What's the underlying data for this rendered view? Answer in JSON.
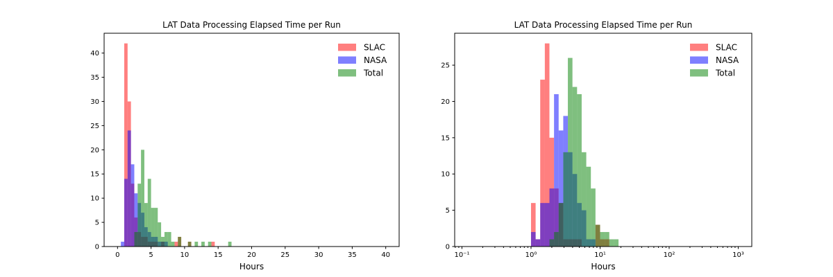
{
  "colors": {
    "slac": "#ff0000",
    "nasa": "#0000ff",
    "total": "#008000",
    "fill_opacity": 0.5,
    "axis": "#000000",
    "background": "#ffffff"
  },
  "chart_data": [
    {
      "type": "histogram",
      "title": "LAT Data Processing Elapsed Time per Run",
      "xlabel": "Hours",
      "xscale": "linear",
      "xlim": [
        -2,
        42
      ],
      "ylim": [
        0,
        44.1
      ],
      "xticks": [
        0,
        5,
        10,
        15,
        20,
        25,
        30,
        35,
        40
      ],
      "yticks": [
        0,
        5,
        10,
        15,
        20,
        25,
        30,
        35,
        40
      ],
      "grid": false,
      "legend_position": "upper right",
      "legend_labels": [
        "SLAC",
        "NASA",
        "Total"
      ],
      "bin_edges": [
        0.5,
        1.0,
        1.5,
        2.0,
        2.5,
        3.0,
        3.5,
        4.0,
        4.5,
        5.0,
        5.5,
        6.0,
        6.5,
        7.0,
        7.5,
        8.0,
        8.5,
        9.0,
        9.5,
        10.0,
        10.5,
        11.0,
        11.5,
        12.0,
        12.5,
        13.0,
        13.5,
        14.0,
        14.5,
        15.0,
        15.5,
        16.0,
        16.5,
        17.0
      ],
      "series": [
        {
          "name": "SLAC",
          "color": "#ff0000",
          "counts": [
            0,
            42,
            30,
            13,
            6,
            3,
            2,
            2,
            1,
            1,
            1,
            0,
            1,
            0,
            0,
            0,
            1,
            2,
            0,
            0,
            1,
            0,
            0,
            0,
            0,
            0,
            0,
            1,
            0,
            0,
            0,
            0,
            0
          ]
        },
        {
          "name": "NASA",
          "color": "#0000ff",
          "counts": [
            1,
            14,
            24,
            17,
            11,
            9,
            7,
            4,
            3,
            2,
            2,
            1,
            1,
            1,
            0,
            0,
            0,
            0,
            0,
            0,
            0,
            0,
            0,
            0,
            0,
            0,
            0,
            0,
            0,
            0,
            0,
            0,
            0
          ]
        },
        {
          "name": "Total",
          "color": "#008000",
          "counts": [
            0,
            0,
            0,
            0,
            3,
            13,
            20,
            9,
            14,
            8,
            8,
            5,
            2,
            3,
            3,
            1,
            0,
            2,
            0,
            0,
            1,
            0,
            1,
            0,
            1,
            0,
            1,
            0,
            0,
            0,
            0,
            0,
            1
          ]
        }
      ]
    },
    {
      "type": "histogram",
      "title": "LAT Data Processing Elapsed Time per Run",
      "xlabel": "Hours",
      "xscale": "log",
      "xlim": [
        0.0785,
        1571
      ],
      "ylim": [
        0,
        29.4
      ],
      "xticks": [
        0.1,
        1,
        10,
        100,
        1000
      ],
      "xtick_labels": [
        "10⁻¹",
        "10⁰",
        "10¹",
        "10²",
        "10³"
      ],
      "yticks": [
        0,
        5,
        10,
        15,
        20,
        25
      ],
      "grid": false,
      "legend_position": "upper right",
      "legend_labels": [
        "SLAC",
        "NASA",
        "Total"
      ],
      "bin_edges": [
        1.0,
        1.166,
        1.359,
        1.585,
        1.848,
        2.154,
        2.512,
        2.929,
        3.415,
        3.981,
        4.642,
        5.412,
        6.31,
        7.356,
        8.577,
        10.0,
        11.659,
        13.594,
        15.849,
        18.478
      ],
      "series": [
        {
          "name": "SLAC",
          "color": "#ff0000",
          "counts": [
            6,
            1,
            23,
            28,
            15,
            8,
            6,
            1,
            1,
            1,
            1,
            0,
            0,
            0,
            3,
            1,
            1,
            0,
            0
          ]
        },
        {
          "name": "NASA",
          "color": "#0000ff",
          "counts": [
            2,
            1,
            6,
            6,
            8,
            21,
            16,
            18,
            13,
            10,
            6,
            5,
            1,
            1,
            0,
            0,
            0,
            0,
            0
          ]
        },
        {
          "name": "Total",
          "color": "#008000",
          "counts": [
            0,
            0,
            0,
            0,
            1,
            2,
            6,
            13,
            26,
            22,
            21,
            13,
            11,
            8,
            3,
            2,
            2,
            1,
            1
          ]
        }
      ]
    }
  ]
}
